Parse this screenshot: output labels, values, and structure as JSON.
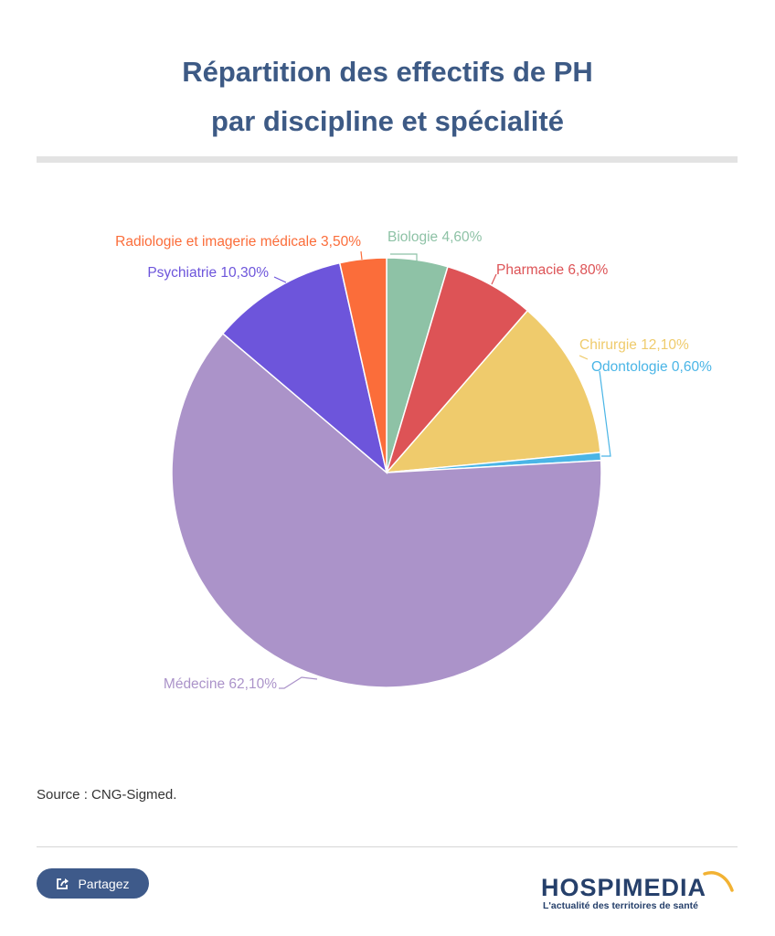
{
  "title": {
    "line1": "Répartition des effectifs de PH",
    "line2": "par discipline et spécialité"
  },
  "chart_data": {
    "type": "pie",
    "title": "Répartition des effectifs de PH par discipline et spécialité",
    "slices": [
      {
        "label": "Biologie",
        "value": 4.6,
        "text": "Biologie 4,60%",
        "color": "#8ec2a6"
      },
      {
        "label": "Pharmacie",
        "value": 6.8,
        "text": "Pharmacie 6,80%",
        "color": "#dd5356"
      },
      {
        "label": "Chirurgie",
        "value": 12.1,
        "text": "Chirurgie 12,10%",
        "color": "#efcb6c"
      },
      {
        "label": "Odontologie",
        "value": 0.6,
        "text": "Odontologie 0,60%",
        "color": "#4ab5e6"
      },
      {
        "label": "Médecine",
        "value": 62.1,
        "text": "Médecine 62,10%",
        "color": "#ab93c9"
      },
      {
        "label": "Psychiatrie",
        "value": 10.3,
        "text": "Psychiatrie 10,30%",
        "color": "#6d55db"
      },
      {
        "label": "Radiologie et imagerie médicale",
        "value": 3.5,
        "text": "Radiologie et imagerie médicale 3,50%",
        "color": "#fb6d3a"
      }
    ]
  },
  "source": "Source : CNG-Sigmed.",
  "share": {
    "label": "Partagez",
    "icon": "share-icon"
  },
  "logo": {
    "name": "HOSPIMEDIA",
    "tagline": "L'actualité des territoires de santé"
  }
}
